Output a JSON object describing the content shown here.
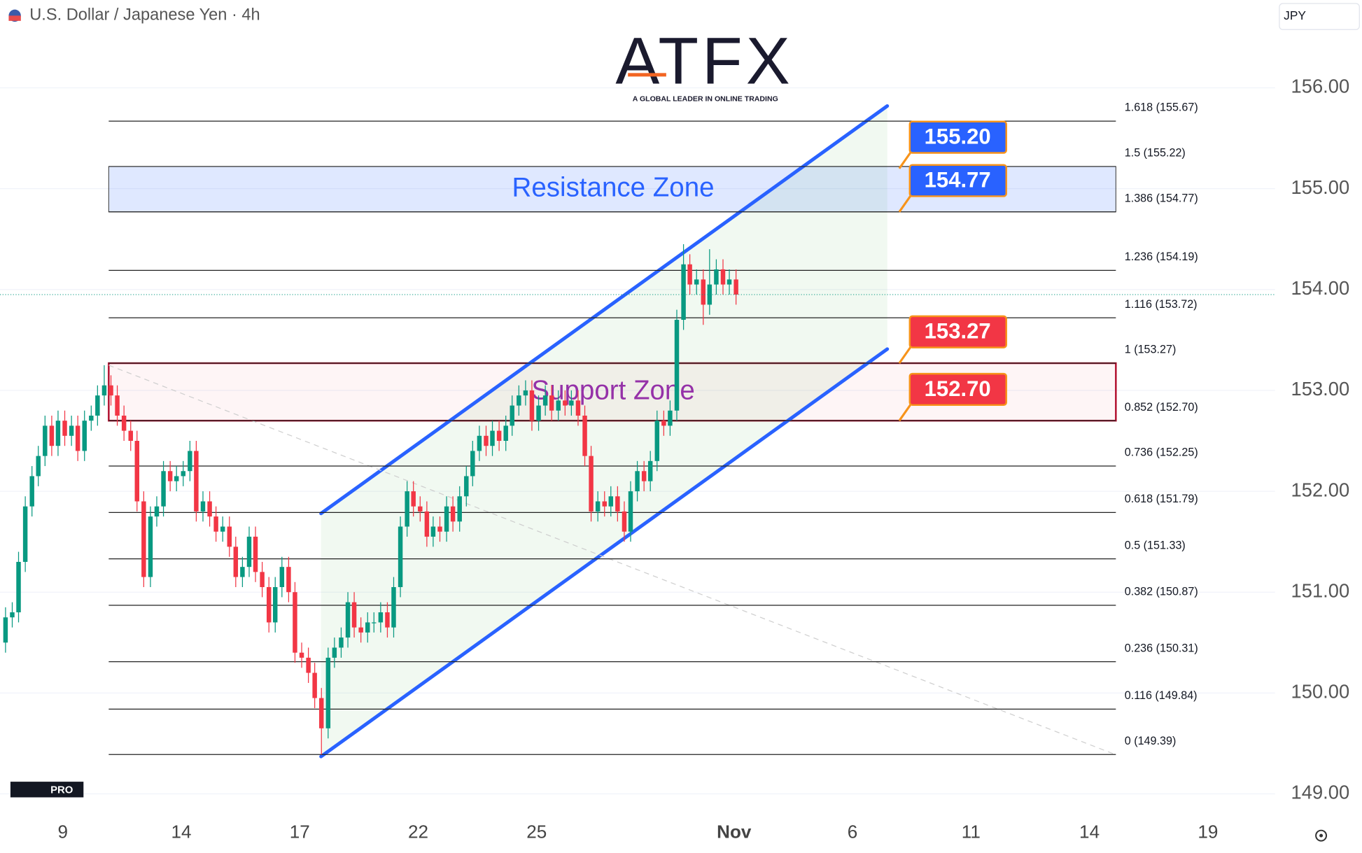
{
  "chart_data": {
    "type": "candlestick",
    "title": "U.S. Dollar / Japanese Yen · 4h",
    "currency": "JPY",
    "logo": "ATFX",
    "logo_tagline": "A GLOBAL LEADER IN ONLINE TRADING",
    "watermark": "PRO",
    "up_color": "#089981",
    "down_color": "#f23645",
    "xlim": [
      -1.59,
      30.7
    ],
    "ylim": [
      148.8,
      156.9
    ],
    "xticks": [
      {
        "value": 0,
        "label": "9"
      },
      {
        "value": 3,
        "label": "14"
      },
      {
        "value": 6,
        "label": "17"
      },
      {
        "value": 9,
        "label": "22"
      },
      {
        "value": 12,
        "label": "25"
      },
      {
        "value": 17,
        "label": "Nov"
      },
      {
        "value": 20,
        "label": "6"
      },
      {
        "value": 23,
        "label": "11"
      },
      {
        "value": 26,
        "label": "14"
      },
      {
        "value": 29,
        "label": "19"
      }
    ],
    "yticks": [
      {
        "value": 149,
        "label": "149.00"
      },
      {
        "value": 150,
        "label": "150.00"
      },
      {
        "value": 151,
        "label": "151.00"
      },
      {
        "value": 152,
        "label": "152.00"
      },
      {
        "value": 153,
        "label": "153.00"
      },
      {
        "value": 154,
        "label": "154.00"
      },
      {
        "value": 155,
        "label": "155.00"
      },
      {
        "value": 156,
        "label": "156.00"
      }
    ],
    "grid": true,
    "x": [
      -1.45,
      -1.28,
      -1.12,
      -0.95,
      -0.78,
      -0.62,
      -0.45,
      -0.28,
      -0.12,
      0.05,
      0.22,
      0.38,
      0.55,
      0.72,
      0.88,
      1.05,
      1.22,
      1.38,
      1.55,
      1.72,
      1.88,
      2.05,
      2.22,
      2.38,
      2.55,
      2.72,
      2.88,
      3.05,
      3.22,
      3.38,
      3.55,
      3.72,
      3.88,
      4.05,
      4.22,
      4.38,
      4.55,
      4.72,
      4.88,
      5.05,
      5.22,
      5.38,
      5.55,
      5.72,
      5.88,
      6.05,
      6.22,
      6.38,
      6.55,
      6.72,
      6.88,
      7.05,
      7.22,
      7.38,
      7.55,
      7.72,
      7.88,
      8.05,
      8.22,
      8.38,
      8.55,
      8.72,
      8.88,
      9.05,
      9.22,
      9.38,
      9.55,
      9.72,
      9.88,
      10.05,
      10.22,
      10.38,
      10.55,
      10.72,
      10.88,
      11.05,
      11.22,
      11.38,
      11.55,
      11.72,
      11.88,
      12.05,
      12.22,
      12.38,
      12.55,
      12.72,
      12.88,
      13.05,
      13.22,
      13.38,
      13.55,
      13.72,
      13.88,
      14.05,
      14.22,
      14.38,
      14.55,
      14.72,
      14.88,
      15.05,
      15.22,
      15.38,
      15.55,
      15.72,
      15.88,
      16.05,
      16.22,
      16.38,
      16.55,
      16.72,
      16.88,
      17.05
    ],
    "open": [
      150.5,
      150.75,
      150.8,
      151.3,
      151.85,
      152.15,
      152.35,
      152.65,
      152.45,
      152.7,
      152.55,
      152.65,
      152.4,
      152.7,
      152.75,
      152.95,
      153.05,
      152.95,
      152.75,
      152.6,
      152.5,
      151.9,
      151.15,
      151.75,
      151.85,
      152.2,
      152.1,
      152.15,
      152.2,
      152.4,
      151.8,
      151.9,
      151.75,
      151.6,
      151.65,
      151.45,
      151.15,
      151.25,
      151.55,
      151.2,
      151.05,
      150.7,
      151.05,
      151.25,
      151.0,
      150.4,
      150.35,
      150.2,
      149.95,
      149.65,
      150.35,
      150.45,
      150.55,
      150.9,
      150.65,
      150.6,
      150.7,
      150.7,
      150.8,
      150.65,
      151.05,
      151.65,
      152.0,
      151.85,
      151.8,
      151.55,
      151.65,
      151.6,
      151.85,
      151.7,
      151.95,
      152.15,
      152.4,
      152.55,
      152.45,
      152.6,
      152.5,
      152.65,
      152.85,
      152.95,
      153.0,
      152.7,
      152.85,
      152.95,
      152.8,
      152.9,
      152.85,
      152.9,
      152.75,
      152.35,
      151.8,
      151.9,
      151.85,
      151.95,
      151.8,
      151.6,
      152.0,
      152.2,
      152.1,
      152.3,
      152.7,
      152.65,
      152.8,
      153.7,
      154.25,
      154.05,
      154.1,
      153.85,
      154.05,
      154.2,
      154.05,
      154.1
    ],
    "high": [
      150.85,
      150.9,
      151.4,
      151.95,
      152.25,
      152.45,
      152.75,
      152.75,
      152.8,
      152.8,
      152.75,
      152.75,
      152.8,
      152.85,
      153.05,
      153.25,
      153.15,
      153.05,
      152.85,
      152.7,
      152.6,
      152.0,
      151.85,
      151.95,
      152.3,
      152.3,
      152.25,
      152.3,
      152.5,
      152.5,
      152.0,
      152.0,
      151.85,
      151.75,
      151.75,
      151.55,
      151.35,
      151.65,
      151.65,
      151.3,
      151.15,
      151.15,
      151.35,
      151.35,
      151.1,
      150.5,
      150.45,
      150.3,
      150.05,
      150.45,
      150.55,
      150.65,
      151.0,
      151.0,
      150.75,
      150.8,
      150.8,
      150.9,
      150.9,
      151.15,
      151.75,
      152.1,
      152.1,
      151.95,
      151.9,
      151.75,
      151.75,
      151.95,
      151.95,
      152.05,
      152.25,
      152.5,
      152.65,
      152.65,
      152.7,
      152.7,
      152.75,
      152.95,
      153.05,
      153.1,
      153.1,
      152.95,
      153.05,
      153.05,
      153.0,
      153.0,
      153.0,
      153.0,
      152.85,
      152.45,
      152.0,
      152.0,
      152.05,
      152.05,
      151.9,
      152.1,
      152.3,
      152.3,
      152.4,
      152.8,
      152.8,
      152.9,
      153.8,
      154.45,
      154.35,
      154.2,
      154.2,
      154.4,
      154.3,
      154.3,
      154.2,
      154.2
    ],
    "low": [
      150.4,
      150.65,
      150.7,
      151.2,
      151.75,
      152.05,
      152.25,
      152.35,
      152.35,
      152.45,
      152.45,
      152.3,
      152.3,
      152.6,
      152.65,
      152.85,
      152.85,
      152.65,
      152.5,
      152.4,
      151.8,
      151.05,
      151.05,
      151.65,
      151.75,
      152.0,
      152.0,
      152.05,
      152.1,
      151.7,
      151.7,
      151.65,
      151.5,
      151.5,
      151.35,
      151.05,
      151.05,
      151.15,
      151.1,
      150.95,
      150.6,
      150.6,
      150.95,
      150.9,
      150.3,
      150.25,
      150.1,
      149.85,
      149.39,
      149.55,
      150.25,
      150.35,
      150.45,
      150.55,
      150.5,
      150.5,
      150.6,
      150.6,
      150.55,
      150.55,
      150.95,
      151.55,
      151.75,
      151.7,
      151.45,
      151.45,
      151.5,
      151.5,
      151.6,
      151.6,
      151.85,
      152.05,
      152.3,
      152.35,
      152.35,
      152.4,
      152.4,
      152.55,
      152.75,
      152.85,
      152.6,
      152.6,
      152.75,
      152.7,
      152.7,
      152.75,
      152.75,
      152.65,
      152.25,
      151.7,
      151.7,
      151.75,
      151.75,
      151.7,
      151.5,
      151.5,
      151.9,
      152.0,
      152.0,
      152.2,
      152.55,
      152.55,
      152.7,
      153.6,
      153.95,
      153.95,
      153.65,
      153.75,
      153.95,
      153.95,
      153.95,
      153.85
    ],
    "close": [
      150.75,
      150.8,
      151.3,
      151.85,
      152.15,
      152.35,
      152.65,
      152.45,
      152.7,
      152.55,
      152.65,
      152.4,
      152.7,
      152.75,
      152.95,
      153.05,
      152.95,
      152.75,
      152.6,
      152.5,
      151.9,
      151.15,
      151.75,
      151.85,
      152.2,
      152.1,
      152.15,
      152.2,
      152.4,
      151.8,
      151.9,
      151.75,
      151.6,
      151.65,
      151.45,
      151.15,
      151.25,
      151.55,
      151.2,
      151.05,
      150.7,
      151.05,
      151.25,
      151.0,
      150.4,
      150.35,
      150.2,
      149.95,
      149.65,
      150.35,
      150.45,
      150.55,
      150.9,
      150.65,
      150.6,
      150.7,
      150.7,
      150.8,
      150.65,
      151.05,
      151.65,
      152.0,
      151.85,
      151.8,
      151.55,
      151.65,
      151.6,
      151.85,
      151.7,
      151.95,
      152.15,
      152.4,
      152.55,
      152.45,
      152.6,
      152.5,
      152.65,
      152.85,
      152.95,
      153.0,
      152.7,
      152.85,
      152.95,
      152.8,
      152.9,
      152.85,
      152.9,
      152.75,
      152.35,
      151.8,
      151.9,
      151.85,
      151.95,
      151.8,
      151.6,
      152.0,
      152.2,
      152.1,
      152.3,
      152.7,
      152.65,
      152.8,
      153.7,
      154.25,
      154.05,
      154.1,
      153.85,
      154.05,
      154.2,
      154.05,
      154.1,
      153.95
    ],
    "fib_levels": [
      {
        "value": 155.67,
        "label": "1.618 (155.67)"
      },
      {
        "value": 155.22,
        "label": "1.5 (155.22)"
      },
      {
        "value": 154.77,
        "label": "1.386 (154.77)"
      },
      {
        "value": 154.19,
        "label": "1.236 (154.19)"
      },
      {
        "value": 153.72,
        "label": "1.116 (153.72)"
      },
      {
        "value": 153.27,
        "label": "1 (153.27)"
      },
      {
        "value": 152.7,
        "label": "0.852 (152.70)"
      },
      {
        "value": 152.25,
        "label": "0.736 (152.25)"
      },
      {
        "value": 151.79,
        "label": "0.618 (151.79)"
      },
      {
        "value": 151.33,
        "label": "0.5 (151.33)"
      },
      {
        "value": 150.87,
        "label": "0.382 (150.87)"
      },
      {
        "value": 150.31,
        "label": "0.236 (150.31)"
      },
      {
        "value": 149.84,
        "label": "0.116 (149.84)"
      },
      {
        "value": 149.39,
        "label": "0 (149.39)"
      }
    ],
    "zones": [
      {
        "label": "Resistance Zone",
        "range": [
          154.77,
          155.22
        ],
        "color": "#2962ff",
        "border_color": "#333333"
      },
      {
        "label": "Support Zone",
        "range": [
          152.7,
          153.27
        ],
        "color": "#9c27b0",
        "border_color": "#b2102f"
      }
    ],
    "channel": {
      "x": [
        6.54,
        20.88
      ],
      "upper": [
        151.78,
        155.82
      ],
      "lower": [
        149.37,
        153.41
      ],
      "color": "#2962ff"
    },
    "price_tags": [
      {
        "value": 155.2,
        "label": "155.20",
        "color": "#2962ff"
      },
      {
        "value": 154.77,
        "label": "154.77",
        "color": "#2962ff"
      },
      {
        "value": 153.27,
        "label": "153.27",
        "color": "#f23645"
      },
      {
        "value": 152.7,
        "label": "152.70",
        "color": "#f23645"
      }
    ]
  }
}
